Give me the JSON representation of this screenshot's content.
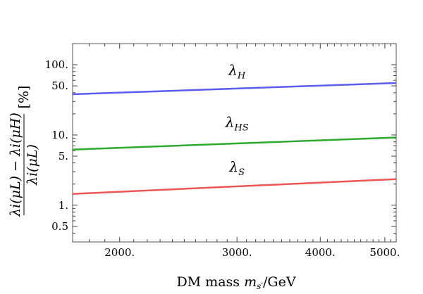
{
  "chart_data": {
    "type": "line",
    "xlabel_prefix": "DM mass ",
    "xlabel_var": "m",
    "xlabel_sub": "s′",
    "xlabel_unit": "/GeV",
    "ylabel_numerator": "λi(μL) − λi(μH)",
    "ylabel_denominator": "λi(μL)",
    "ylabel_unit": "[%]",
    "x_scale": "log",
    "y_scale": "log",
    "xlim": [
      1700,
      5200
    ],
    "ylim": [
      0.3,
      200
    ],
    "x_ticks": [
      {
        "value": 2000,
        "label": "2000."
      },
      {
        "value": 3000,
        "label": "3000."
      },
      {
        "value": 4000,
        "label": "4000."
      },
      {
        "value": 5000,
        "label": "5000."
      }
    ],
    "y_ticks": [
      {
        "value": 0.5,
        "label": "0.5"
      },
      {
        "value": 1,
        "label": "1."
      },
      {
        "value": 5,
        "label": "5."
      },
      {
        "value": 10,
        "label": "10."
      },
      {
        "value": 50,
        "label": "50."
      },
      {
        "value": 100,
        "label": "100."
      }
    ],
    "series": [
      {
        "name": "λH",
        "main": "λ",
        "sub": "H",
        "color": "#5b5bf0",
        "x": [
          1700,
          5200
        ],
        "y": [
          38,
          55
        ],
        "label_pos": [
          3000,
          72
        ]
      },
      {
        "name": "λHS",
        "main": "λ",
        "sub": "HS",
        "color": "#2eaa2e",
        "x": [
          1700,
          5200
        ],
        "y": [
          6.2,
          9.2
        ],
        "label_pos": [
          3000,
          13
        ]
      },
      {
        "name": "λS",
        "main": "λ",
        "sub": "S",
        "color": "#ee5555",
        "x": [
          1700,
          5200
        ],
        "y": [
          1.45,
          2.35
        ],
        "label_pos": [
          3000,
          3.0
        ]
      }
    ],
    "grid": false
  }
}
